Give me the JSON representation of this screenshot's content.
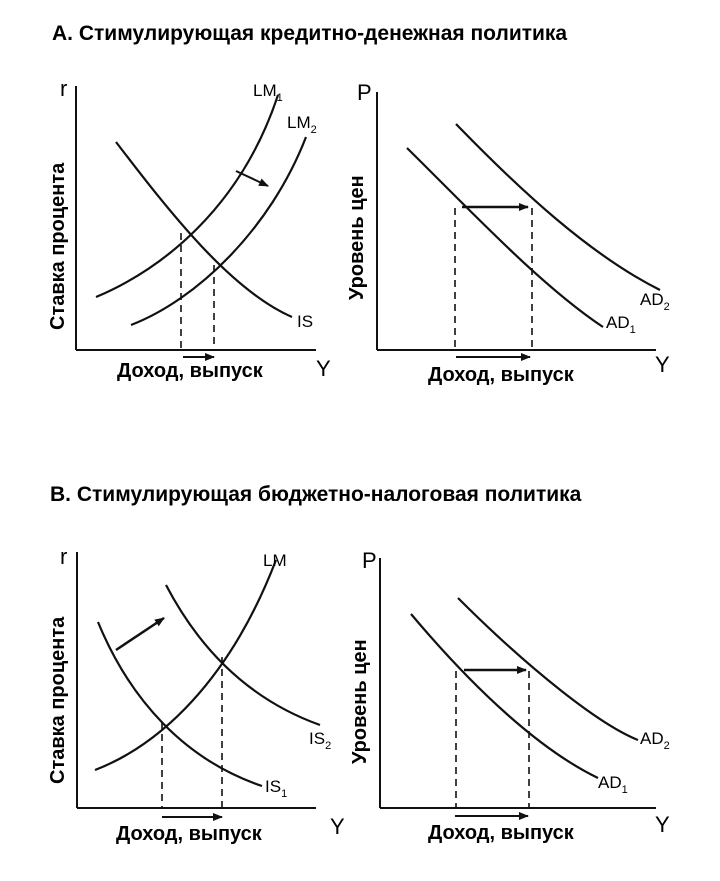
{
  "panel_a": {
    "title": "А. Стимулирующая кредитно-денежная политика",
    "left": {
      "y_axis_letter": "r",
      "y_label": "Ставка процента",
      "x_axis_letter": "Y",
      "x_label": "Доход, выпуск",
      "curves": [
        {
          "name": "LM",
          "sub": "1"
        },
        {
          "name": "LM",
          "sub": "2"
        },
        {
          "name": "IS",
          "sub": ""
        }
      ]
    },
    "right": {
      "y_axis_letter": "P",
      "y_label": "Уровень цен",
      "x_axis_letter": "Y",
      "x_label": "Доход, выпуск",
      "curves": [
        {
          "name": "AD",
          "sub": "1"
        },
        {
          "name": "AD",
          "sub": "2"
        }
      ]
    }
  },
  "panel_b": {
    "title": "В. Стимулирующая бюджетно-налоговая политика",
    "left": {
      "y_axis_letter": "r",
      "y_label": "Ставка процента",
      "x_axis_letter": "Y",
      "x_label": "Доход, выпуск",
      "curves": [
        {
          "name": "LM",
          "sub": ""
        },
        {
          "name": "IS",
          "sub": "1"
        },
        {
          "name": "IS",
          "sub": "2"
        }
      ]
    },
    "right": {
      "y_axis_letter": "P",
      "y_label": "Уровень цен",
      "x_axis_letter": "Y",
      "x_label": "Доход, выпуск",
      "curves": [
        {
          "name": "AD",
          "sub": "1"
        },
        {
          "name": "AD",
          "sub": "2"
        }
      ]
    }
  }
}
